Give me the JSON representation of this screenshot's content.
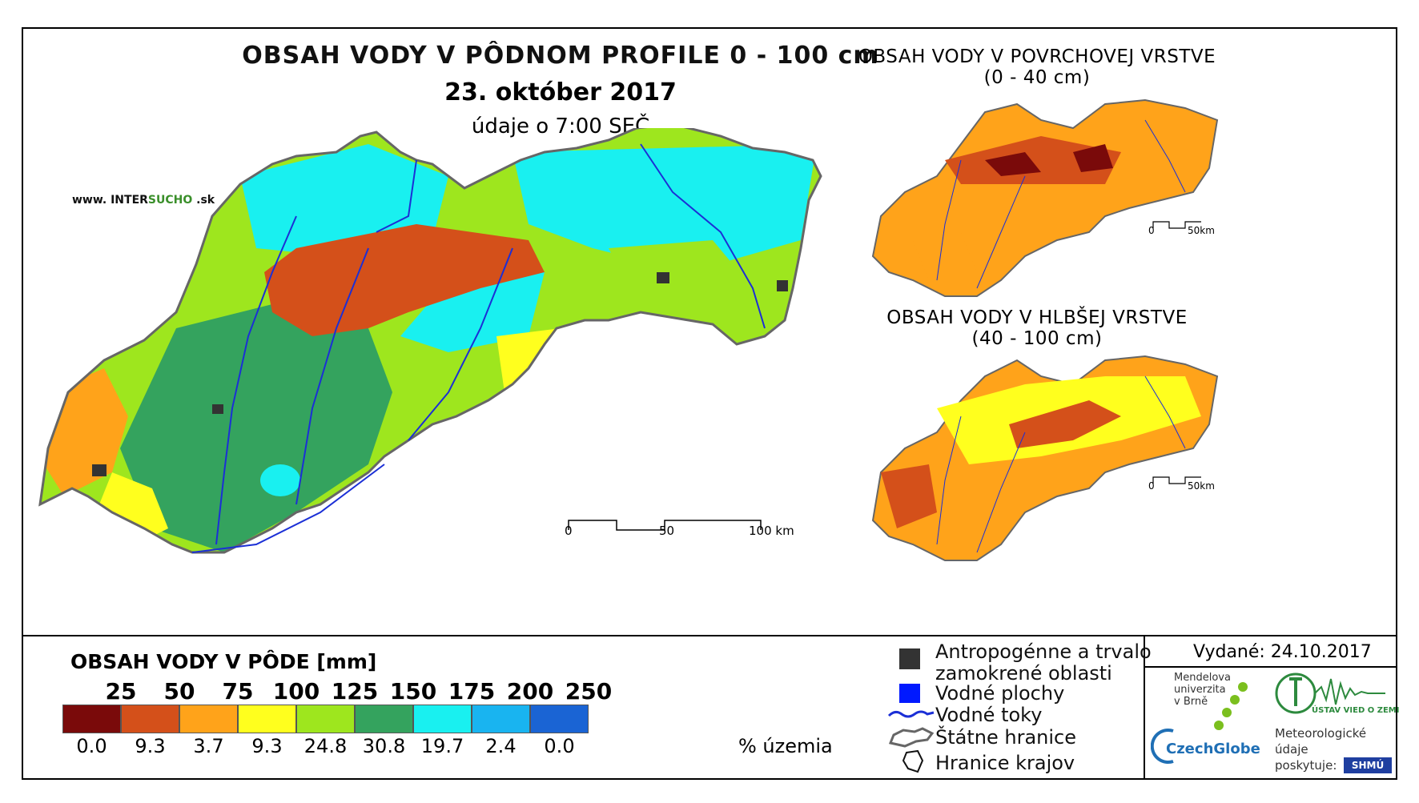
{
  "main": {
    "title": "OBSAH VODY V PÔDNOM PROFILE 0 - 100 cm",
    "date": "23. október 2017",
    "time": "údaje o 7:00 SEČ",
    "website_prefix": "www. INTER",
    "website_green": "SUCHO",
    "website_suffix": " .sk",
    "scale": {
      "l0": "0",
      "l1": "50",
      "l2": "100 km"
    }
  },
  "inset_top": {
    "title_line1": "OBSAH VODY V POVRCHOVEJ VRSTVE",
    "title_line2": "(0 - 40 cm)",
    "scale": {
      "l0": "0",
      "l1": "50km"
    }
  },
  "inset_bottom": {
    "title_line1": "OBSAH VODY V HLBŠEJ VRSTVE",
    "title_line2": "(40 - 100 cm)",
    "scale": {
      "l0": "0",
      "l1": "50km"
    }
  },
  "legend": {
    "title": "OBSAH VODY V PÔDE [mm]",
    "thresholds": [
      "25",
      "50",
      "75",
      "100",
      "125",
      "150",
      "175",
      "200",
      "250"
    ],
    "classes": [
      {
        "color": "#7a0a0a",
        "percent": "0.0"
      },
      {
        "color": "#d4501a",
        "percent": "9.3"
      },
      {
        "color": "#ffa31a",
        "percent": "3.7"
      },
      {
        "color": "#ffff1e",
        "percent": "9.3"
      },
      {
        "color": "#9ee61e",
        "percent": "24.8"
      },
      {
        "color": "#34a35e",
        "percent": "30.8"
      },
      {
        "color": "#19f0f0",
        "percent": "19.7"
      },
      {
        "color": "#19b4f0",
        "percent": "2.4"
      },
      {
        "color": "#1a64d4",
        "percent": "0.0"
      }
    ],
    "percent_unit": "% územia"
  },
  "symbols": {
    "anthropogenic_line1": "Antropogénne a trvalo",
    "anthropogenic_line2": "zamokrené oblasti",
    "water_bodies": "Vodné plochy",
    "streams": "Vodné toky",
    "state_border": "Štátne hranice",
    "region_border": "Hranice krajov"
  },
  "footer": {
    "issued": "Vydané: 24.10.2017",
    "mendel_line1": "Mendelova",
    "mendel_line2": "univerzita",
    "mendel_line3": "v Brně",
    "czechglobe": "CzechGlobe",
    "czechglobe_green": "Globe",
    "uvgz": "ÚSTAV VIED O ZEMI",
    "meteo_line1": "Meteorologické",
    "meteo_line2": "údaje",
    "meteo_line3": "poskytuje:",
    "shmu": "SHMÚ"
  }
}
